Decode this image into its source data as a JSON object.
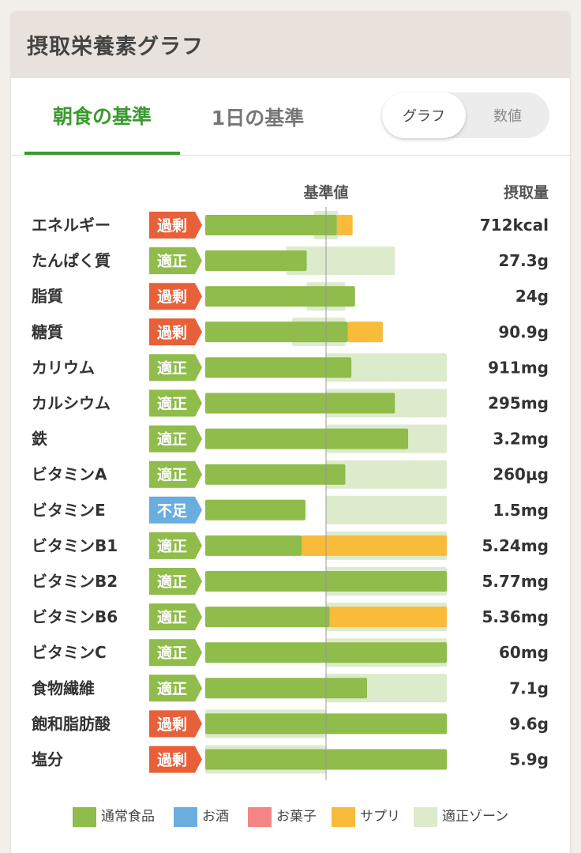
{
  "header": {
    "title": "摂取栄養素グラフ"
  },
  "tabs": [
    {
      "label": "朝食の基準"
    },
    {
      "label": "1日の基準"
    }
  ],
  "toggle": {
    "options": [
      "グラフ",
      "数値"
    ],
    "selected": "グラフ"
  },
  "colors": {
    "normal_food": "#8fbc4a",
    "alcohol": "#6aaee0",
    "sweets": "#f58585",
    "supplement": "#f9bb3a",
    "zone": "#dcebcc",
    "status_excess": "#e8603a",
    "status_ok": "#8fbc4a",
    "status_low": "#6aaee0"
  },
  "status_labels": {
    "excess": "過剰",
    "ok": "適正",
    "low": "不足"
  },
  "chart_data": {
    "type": "bar",
    "orientation": "horizontal",
    "stacked": true,
    "scale_note": "values are percent of reference (基準値 = 100)",
    "reference_label": "基準値",
    "intake_header": "摂取量",
    "categories": [
      "エネルギー",
      "たんぱく質",
      "脂質",
      "糖質",
      "カリウム",
      "カルシウム",
      "鉄",
      "ビタミンA",
      "ビタミンE",
      "ビタミンB1",
      "ビタミンB2",
      "ビタミンB6",
      "ビタミンC",
      "食物繊維",
      "飽和脂肪酸",
      "塩分"
    ],
    "status": [
      "excess",
      "ok",
      "excess",
      "excess",
      "ok",
      "ok",
      "ok",
      "ok",
      "low",
      "ok",
      "ok",
      "ok",
      "ok",
      "ok",
      "excess",
      "excess"
    ],
    "intake_labels": [
      "712kcal",
      "27.3g",
      "24g",
      "90.9g",
      "911mg",
      "295mg",
      "3.2mg",
      "260μg",
      "1.5mg",
      "5.24mg",
      "5.77mg",
      "5.36mg",
      "60mg",
      "7.1g",
      "9.6g",
      "5.9g"
    ],
    "series": [
      {
        "name": "通常食品",
        "values": [
          109,
          84,
          124,
          118,
          121,
          157,
          168,
          116,
          83,
          80,
          200,
          103,
          200,
          134,
          200,
          200
        ]
      },
      {
        "name": "サプリ",
        "values": [
          13,
          0,
          0,
          29,
          0,
          0,
          0,
          0,
          0,
          120,
          0,
          97,
          0,
          0,
          0,
          0
        ]
      }
    ],
    "zones": [
      [
        90,
        110
      ],
      [
        67,
        157
      ],
      [
        84,
        116
      ],
      [
        72,
        116
      ],
      [
        100,
        200
      ],
      [
        100,
        200
      ],
      [
        100,
        200
      ],
      [
        100,
        200
      ],
      [
        100,
        200
      ],
      [
        100,
        200
      ],
      [
        100,
        200
      ],
      [
        100,
        200
      ],
      [
        100,
        200
      ],
      [
        100,
        200
      ],
      [
        0,
        100
      ],
      [
        0,
        100
      ]
    ],
    "xlim": [
      0,
      200
    ],
    "legend": [
      "通常食品",
      "お酒",
      "お菓子",
      "サプリ",
      "適正ゾーン"
    ],
    "legend_placement": "bottom"
  }
}
